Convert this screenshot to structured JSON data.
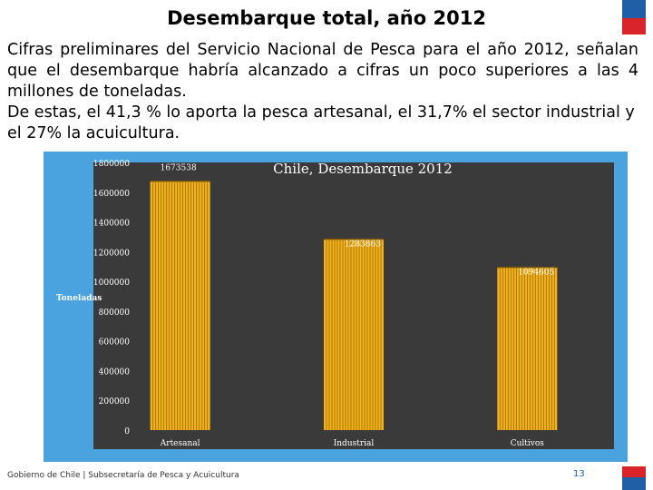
{
  "slide": {
    "title": "Desembarque total, año 2012",
    "paragraph1": "Cifras preliminares del Servicio Nacional de Pesca para el año 2012, señalan que el desembarque habría alcanzado a cifras un poco superiores a las 4 millones de toneladas.",
    "paragraph2": "De estas, el 41,3 % lo aporta la pesca artesanal, el 31,7% el sector industrial y el 27% la acuicultura.",
    "footer": "Gobierno de Chile | Subsecretaría de Pesca y Acuicultura",
    "page_number": "13"
  },
  "colors": {
    "frame": "#4aa3df",
    "plot_bg": "#3a3a3a",
    "bar": "#f2b21b",
    "bar_line": "#9a6a06",
    "flag_blue": "#1f5fa8",
    "flag_red": "#d9242b"
  },
  "chart_data": {
    "type": "bar",
    "title": "Chile, Desembarque 2012",
    "ylabel": "Toneladas",
    "xlabel": "",
    "categories": [
      "Artesanal",
      "Industrial",
      "Cultivos"
    ],
    "values": [
      1673538,
      1283863,
      1094605
    ],
    "data_labels": [
      "1673538",
      "1283863",
      "1094605"
    ],
    "ylim": [
      0,
      1800000
    ],
    "yticks": [
      0,
      200000,
      400000,
      600000,
      800000,
      1000000,
      1200000,
      1400000,
      1600000,
      1800000
    ],
    "grid": false,
    "legend": "none"
  }
}
